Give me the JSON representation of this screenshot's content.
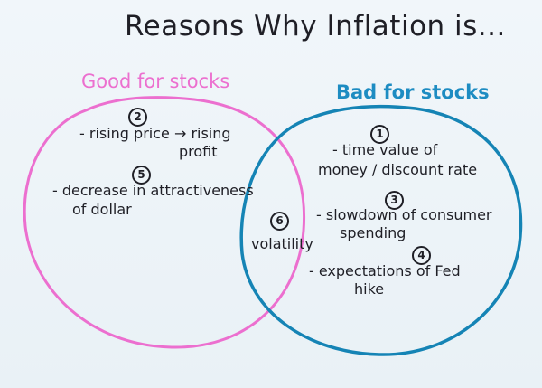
{
  "title": "Reasons Why Inflation is...",
  "headings": {
    "good": "Good for stocks",
    "bad": "Bad for stocks"
  },
  "colors": {
    "good_circle": "#ec6fcf",
    "bad_circle": "#1584b5",
    "ink": "#1f1f26"
  },
  "good_items": [
    {
      "number": "2",
      "line1": "- rising price → rising",
      "line2": "profit"
    },
    {
      "number": "5",
      "line1": "- decrease in attractiveness",
      "line2": "of dollar"
    }
  ],
  "overlap_item": {
    "number": "6",
    "label": "volatility"
  },
  "bad_items": [
    {
      "number": "1",
      "line1": "- time value of",
      "line2": "money / discount rate"
    },
    {
      "number": "3",
      "line1": "- slowdown of consumer",
      "line2": "spending"
    },
    {
      "number": "4",
      "line1": "- expectations of Fed",
      "line2": "hike"
    }
  ]
}
